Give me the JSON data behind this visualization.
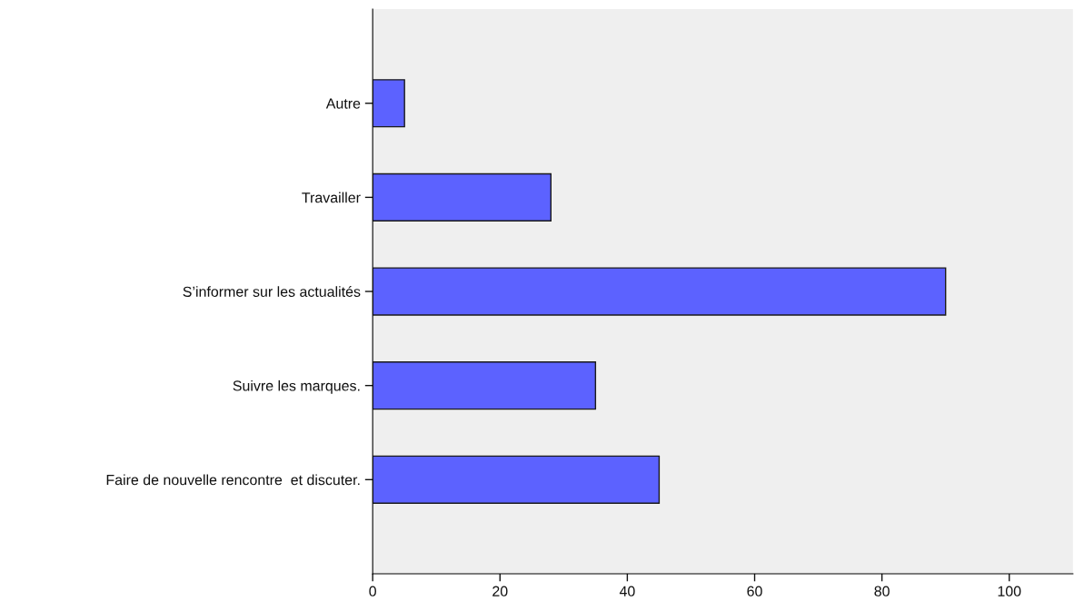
{
  "chart_data": {
    "type": "bar",
    "orientation": "horizontal",
    "categories": [
      "Autre",
      "Travailler",
      "S’informer sur les actualités",
      "Suivre les marques.",
      "Faire de nouvelle rencontre  et discuter."
    ],
    "values": [
      5,
      28,
      90,
      35,
      45
    ],
    "color": "#5c62ff",
    "xlim": [
      0,
      110
    ],
    "xticks": [
      0,
      20,
      40,
      60,
      80,
      100
    ],
    "grid": false
  }
}
